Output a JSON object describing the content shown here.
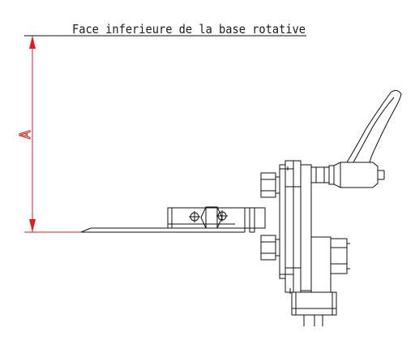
{
  "drawing": {
    "title_label": "Face inferieure de la base rotative",
    "dimension_label": "A",
    "colors": {
      "line": "#111111",
      "dimension": "#e21b1b",
      "background": "#ffffff"
    }
  }
}
